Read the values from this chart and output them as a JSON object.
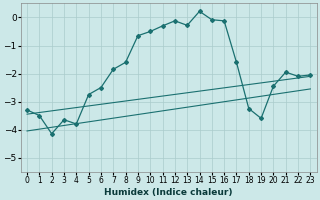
{
  "xlabel": "Humidex (Indice chaleur)",
  "ylabel": "",
  "bg_color": "#cce8e8",
  "grid_color": "#aacccc",
  "line_color": "#1a7070",
  "xlim": [
    -0.5,
    23.5
  ],
  "ylim": [
    -5.5,
    0.5
  ],
  "yticks": [
    0,
    -1,
    -2,
    -3,
    -4,
    -5
  ],
  "xticks": [
    0,
    1,
    2,
    3,
    4,
    5,
    6,
    7,
    8,
    9,
    10,
    11,
    12,
    13,
    14,
    15,
    16,
    17,
    18,
    19,
    20,
    21,
    22,
    23
  ],
  "curve1_x": [
    0,
    1,
    2,
    3,
    4,
    5,
    6,
    7,
    8,
    9,
    10,
    11,
    12,
    13,
    14,
    15,
    16,
    17,
    18,
    19,
    20,
    21,
    22,
    23
  ],
  "curve1_y": [
    -3.3,
    -3.5,
    -4.15,
    -3.65,
    -3.8,
    -2.75,
    -2.5,
    -1.85,
    -1.6,
    -0.65,
    -0.5,
    -0.3,
    -0.12,
    -0.28,
    0.22,
    -0.08,
    -0.12,
    -1.6,
    -3.25,
    -3.6,
    -2.45,
    -1.95,
    -2.1,
    -2.05
  ],
  "line2_x": [
    0,
    23
  ],
  "line2_y": [
    -3.45,
    -2.1
  ],
  "line3_x": [
    0,
    23
  ],
  "line3_y": [
    -4.05,
    -2.55
  ],
  "spine_color": "#888888"
}
